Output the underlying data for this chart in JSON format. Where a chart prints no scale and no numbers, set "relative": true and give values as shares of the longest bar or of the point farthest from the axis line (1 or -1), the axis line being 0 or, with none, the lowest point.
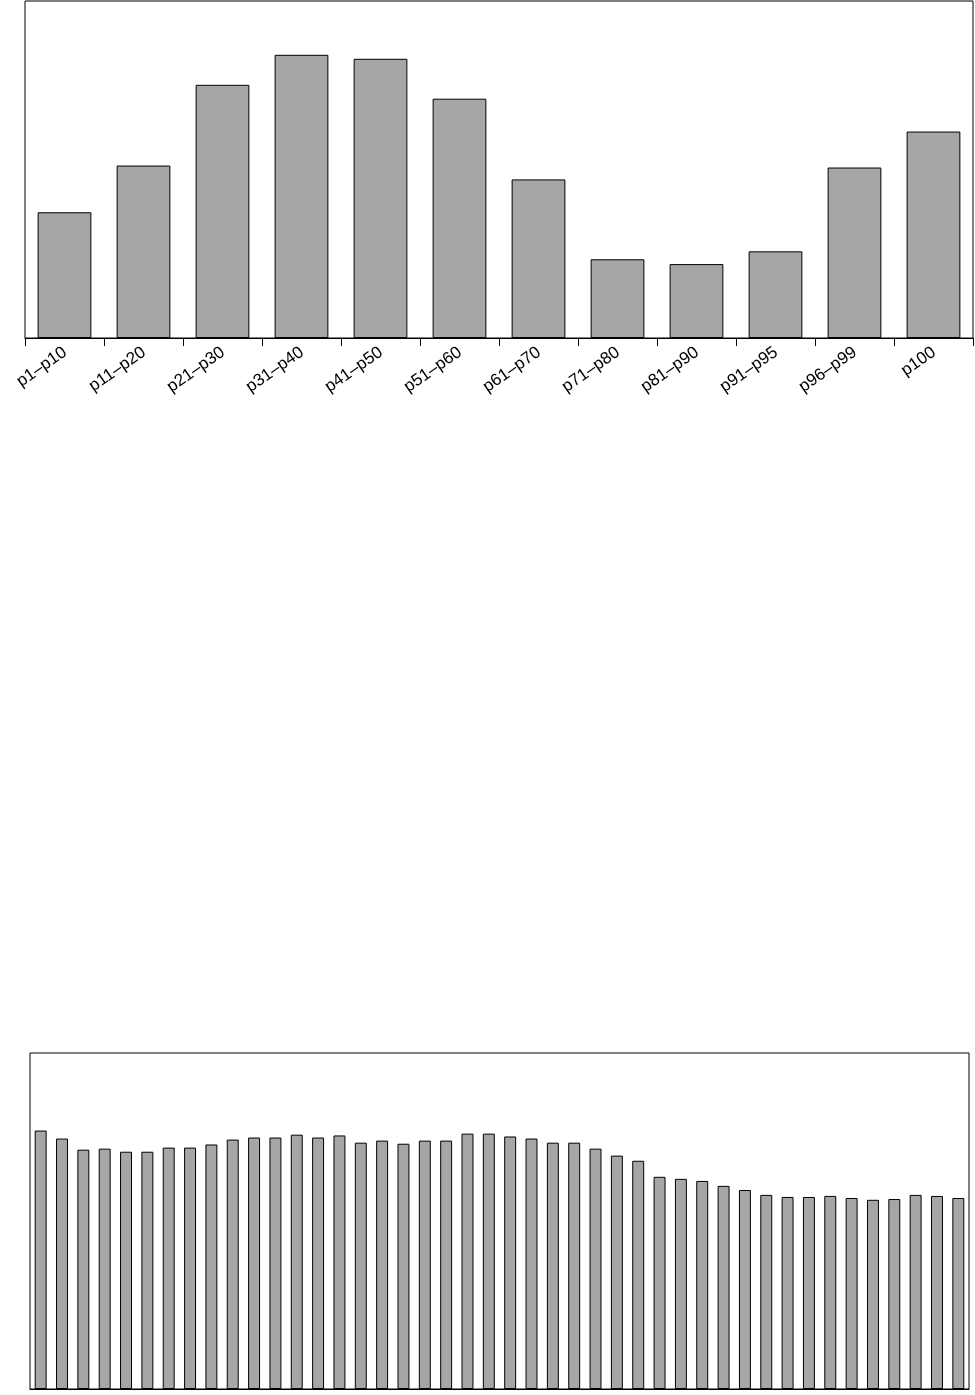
{
  "chart_data": [
    {
      "type": "bar",
      "relative": true,
      "categories": [
        "p1–p10",
        "p11–p20",
        "p21–p30",
        "p31–p40",
        "p41–p50",
        "p51–p60",
        "p61–p70",
        "p71–p80",
        "p81–p90",
        "p91–p95",
        "p96–p99",
        "p100"
      ],
      "series": [
        {
          "color": "#a6a6a6",
          "values": [
            0.444,
            0.609,
            0.894,
            1,
            0.986,
            0.845,
            0.56,
            0.278,
            0.261,
            0.306,
            0.602,
            0.729
          ]
        }
      ]
    },
    {
      "type": "bar",
      "relative": true,
      "tick_labels": false,
      "categories": [
        null,
        null,
        null,
        null,
        null,
        null,
        null,
        null,
        null,
        null,
        null,
        null,
        null,
        null,
        null,
        null,
        null,
        null,
        null,
        null,
        null,
        null,
        null,
        null,
        null,
        null,
        null,
        null,
        null,
        null,
        null,
        null,
        null,
        null,
        null,
        null,
        null,
        null,
        null,
        null,
        null,
        null,
        null,
        null
      ],
      "series": [
        {
          "color": "#a6a6a6",
          "values": [
            1,
            0.969,
            0.926,
            0.93,
            0.918,
            0.918,
            0.934,
            0.934,
            0.946,
            0.965,
            0.973,
            0.973,
            0.984,
            0.973,
            0.981,
            0.953,
            0.961,
            0.949,
            0.961,
            0.961,
            0.988,
            0.988,
            0.977,
            0.969,
            0.953,
            0.953,
            0.93,
            0.903,
            0.883,
            0.821,
            0.813,
            0.805,
            0.786,
            0.77,
            0.751,
            0.743,
            0.743,
            0.747,
            0.739,
            0.732,
            0.735,
            0.751,
            0.747,
            0.739
          ]
        }
      ]
    }
  ]
}
